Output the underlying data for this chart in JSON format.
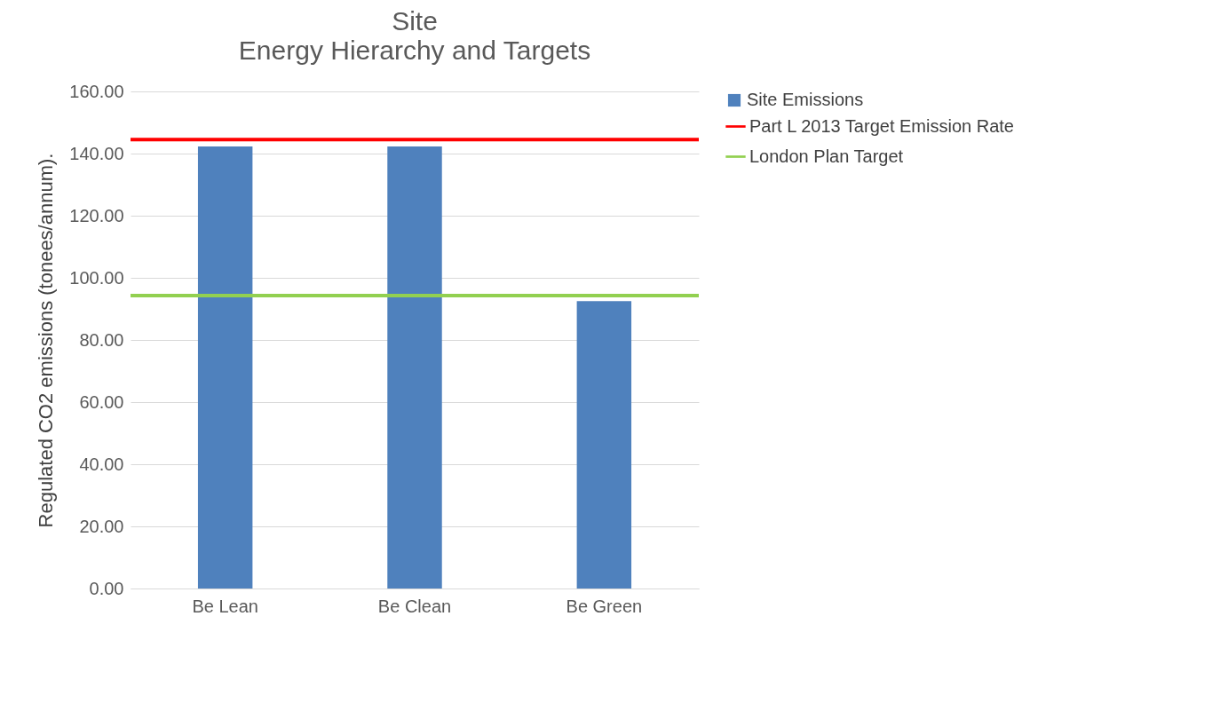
{
  "chart_data": {
    "type": "bar",
    "title": "Site",
    "subtitle": "Energy Hierarchy and Targets",
    "ylabel": "Regulated CO2 emissions (tonees/annum).",
    "categories": [
      "Be Lean",
      "Be Clean",
      "Be Green"
    ],
    "series": [
      {
        "name": "Site Emissions",
        "color": "#4f81bd",
        "values": [
          142.3,
          142.3,
          92.5
        ]
      }
    ],
    "ref_lines": [
      {
        "axis": "y",
        "value": 144.5,
        "label": "Part L 2013 Target Emission Rate",
        "color": "#ff0000"
      },
      {
        "axis": "y",
        "value": 94.3,
        "label": "London Plan Target",
        "color": "#92d050"
      }
    ],
    "ylim": [
      0,
      160
    ],
    "yticks": [
      {
        "value": 0,
        "label": "0.00"
      },
      {
        "value": 20,
        "label": "20.00"
      },
      {
        "value": 40,
        "label": "40.00"
      },
      {
        "value": 60,
        "label": "60.00"
      },
      {
        "value": 80,
        "label": "80.00"
      },
      {
        "value": 100,
        "label": "100.00"
      },
      {
        "value": 120,
        "label": "120.00"
      },
      {
        "value": 140,
        "label": "140.00"
      },
      {
        "value": 160,
        "label": "160.00"
      }
    ],
    "grid": "y",
    "legend": "right"
  }
}
